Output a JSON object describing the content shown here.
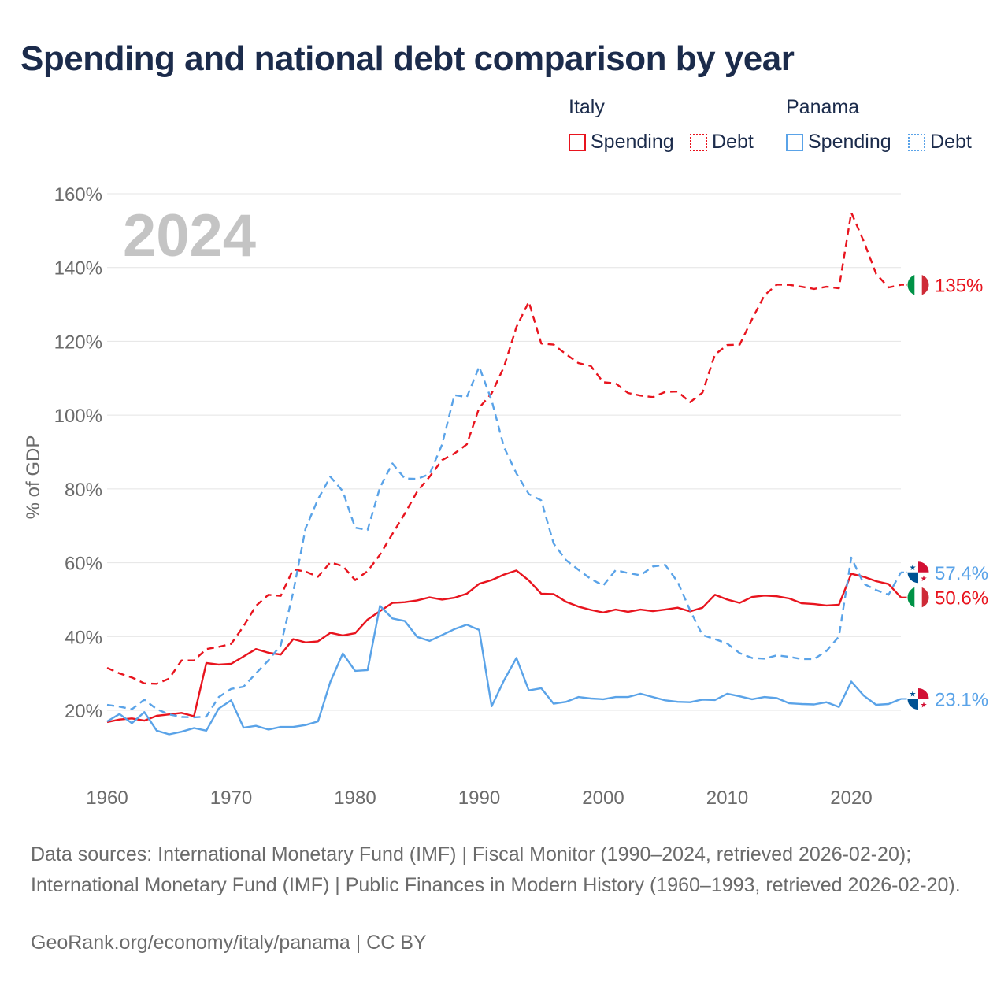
{
  "title": "Spending and national debt comparison by year",
  "legend": {
    "groups": [
      {
        "name": "Italy",
        "items": [
          {
            "label": "Spending",
            "style": "solid"
          },
          {
            "label": "Debt",
            "style": "dotted"
          }
        ]
      },
      {
        "name": "Panama",
        "items": [
          {
            "label": "Spending",
            "style": "solid"
          },
          {
            "label": "Debt",
            "style": "dotted"
          }
        ]
      }
    ]
  },
  "colors": {
    "italy": "#e8141e",
    "panama": "#5aa3e8",
    "grid": "#e4e4e4",
    "axis_text": "#6b6b6b",
    "year_watermark": "#c4c4c4"
  },
  "chart_data": {
    "type": "line",
    "title": "Spending and national debt comparison by year",
    "ylabel": "% of GDP",
    "xlabel": "",
    "ylim": [
      5,
      165
    ],
    "xlim": [
      1960,
      2024
    ],
    "y_ticks": [
      20,
      40,
      60,
      80,
      100,
      120,
      140,
      160
    ],
    "y_tick_labels": [
      "20%",
      "40%",
      "60%",
      "80%",
      "100%",
      "120%",
      "140%",
      "160%"
    ],
    "x_ticks": [
      1960,
      1970,
      1980,
      1990,
      2000,
      2010,
      2020
    ],
    "x_tick_labels": [
      "1960",
      "1970",
      "1980",
      "1990",
      "2000",
      "2010",
      "2020"
    ],
    "year_label": "2024",
    "grid": true,
    "x": [
      1960,
      1961,
      1962,
      1963,
      1964,
      1965,
      1966,
      1967,
      1968,
      1969,
      1970,
      1971,
      1972,
      1973,
      1974,
      1975,
      1976,
      1977,
      1978,
      1979,
      1980,
      1981,
      1982,
      1983,
      1984,
      1985,
      1986,
      1987,
      1988,
      1989,
      1990,
      1991,
      1992,
      1993,
      1994,
      1995,
      1996,
      1997,
      1998,
      1999,
      2000,
      2001,
      2002,
      2003,
      2004,
      2005,
      2006,
      2007,
      2008,
      2009,
      2010,
      2011,
      2012,
      2013,
      2014,
      2015,
      2016,
      2017,
      2018,
      2019,
      2020,
      2021,
      2022,
      2023,
      2024
    ],
    "series": [
      {
        "name": "Italy Spending",
        "country": "italy",
        "dash": "solid",
        "end_label": "50.6%",
        "values": [
          16.8,
          17.5,
          17.8,
          17.2,
          18.5,
          18.9,
          19.3,
          18.4,
          32.8,
          32.4,
          32.6,
          34.6,
          36.6,
          35.6,
          35.1,
          39.3,
          38.4,
          38.7,
          41,
          40.3,
          40.9,
          44.6,
          46.9,
          49.1,
          49.3,
          49.8,
          50.6,
          50,
          50.5,
          51.6,
          54.3,
          55.3,
          56.8,
          57.9,
          55.2,
          51.6,
          51.5,
          49.4,
          48.1,
          47.2,
          46.5,
          47.3,
          46.7,
          47.3,
          46.9,
          47.3,
          47.8,
          46.8,
          47.8,
          51.3,
          50,
          49.1,
          50.7,
          51.1,
          50.9,
          50.3,
          49,
          48.8,
          48.4,
          48.6,
          57,
          56.2,
          55,
          54.2,
          50.6
        ]
      },
      {
        "name": "Italy Debt",
        "country": "italy",
        "dash": "dashed",
        "end_label": "135%",
        "values": [
          31.5,
          30,
          28.9,
          27.3,
          27.2,
          28.6,
          33.5,
          33.5,
          36.6,
          37.2,
          38,
          42.8,
          48.3,
          51.3,
          51,
          58.2,
          57.6,
          56.2,
          60.1,
          59.1,
          55.3,
          57.7,
          62.2,
          67.8,
          73.3,
          79.3,
          83.3,
          87.8,
          89.6,
          92.1,
          102,
          105.9,
          113.1,
          123.9,
          130.7,
          119.4,
          119.1,
          116.5,
          114.1,
          113.3,
          108.9,
          108.6,
          106,
          105.3,
          104.9,
          106.3,
          106.4,
          103.5,
          106.1,
          116.4,
          119,
          119.1,
          126,
          132.5,
          135.4,
          135.3,
          134.8,
          134.2,
          134.8,
          134.4,
          154.9,
          147.1,
          138.3,
          134.6,
          135.3
        ]
      },
      {
        "name": "Panama Spending",
        "country": "panama",
        "dash": "solid",
        "end_label": "23.1%",
        "values": [
          17,
          19,
          16.5,
          19.5,
          14.5,
          13.5,
          14.2,
          15.2,
          14.5,
          20.5,
          22.7,
          15.3,
          15.8,
          14.8,
          15.5,
          15.5,
          16,
          17,
          27.7,
          35.4,
          30.7,
          30.9,
          48.3,
          44.9,
          44.2,
          39.9,
          38.8,
          40.4,
          42,
          43.2,
          41.8,
          21.1,
          28.1,
          34.2,
          25.4,
          26,
          21.8,
          22.3,
          23.6,
          23.2,
          23,
          23.6,
          23.6,
          24.5,
          23.6,
          22.7,
          22.3,
          22.2,
          22.9,
          22.8,
          24.5,
          23.8,
          23,
          23.6,
          23.3,
          21.9,
          21.7,
          21.6,
          22.2,
          20.9,
          27.8,
          24,
          21.5,
          21.7,
          23.1
        ]
      },
      {
        "name": "Panama Debt",
        "country": "panama",
        "dash": "dashed",
        "end_label": "57.4%",
        "values": [
          21.5,
          21,
          20.3,
          22.9,
          20.3,
          18.9,
          18.2,
          18.1,
          18.3,
          23.6,
          25.8,
          26.4,
          30,
          33.5,
          37.6,
          52,
          69.3,
          77.2,
          83.3,
          79.4,
          69.5,
          68.9,
          80.4,
          86.9,
          82.8,
          82.7,
          84,
          92,
          105.4,
          104.9,
          113.1,
          104,
          91.3,
          84.2,
          78.6,
          76.9,
          65.2,
          60.7,
          58.1,
          55.6,
          53.8,
          58,
          57.2,
          56.6,
          59,
          59.4,
          54.8,
          47.1,
          40.4,
          39.3,
          38.1,
          35.5,
          34.2,
          34,
          34.9,
          34.5,
          33.9,
          33.9,
          36.1,
          40,
          61.4,
          54.3,
          52.6,
          51.3,
          57.4
        ]
      }
    ]
  },
  "source": {
    "text": "Data sources: International Monetary Fund (IMF) | Fiscal Monitor (1990–2024, retrieved 2026-02-20); International Monetary Fund (IMF) | Public Finances in Modern History (1960–1993, retrieved 2026-02-20).",
    "credit": "GeoRank.org/economy/italy/panama | CC BY"
  }
}
